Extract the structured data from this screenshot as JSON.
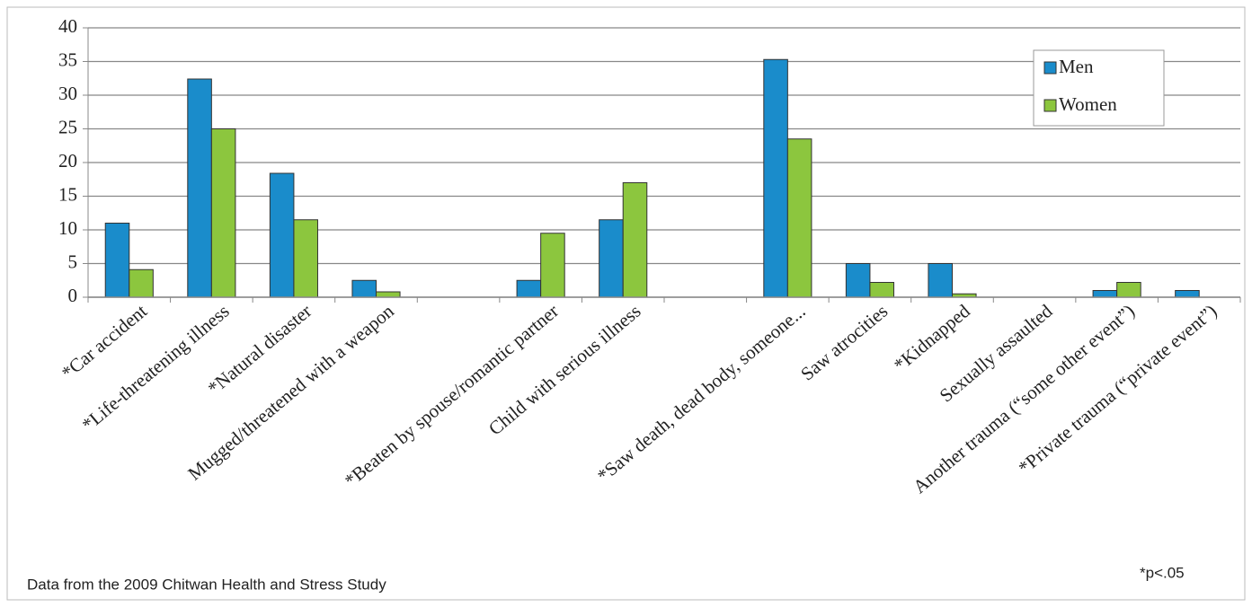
{
  "chart_data": {
    "type": "bar",
    "categories": [
      "*Car accident",
      "*Life-threatening illness",
      "*Natural disaster",
      "Mugged/threatened with a weapon",
      null,
      "*Beaten by spouse/romantic partner",
      "Child with serious illness",
      null,
      "*Saw death, dead body, someone...",
      "Saw atrocities",
      "*Kidnapped",
      "Sexually assaulted",
      "Another trauma (“some other event”)",
      "*Private trauma (“private event”)"
    ],
    "series": [
      {
        "name": "Men",
        "color": "#1a8ccb",
        "values": [
          11,
          32.4,
          18.4,
          2.5,
          null,
          2.5,
          11.5,
          null,
          35.3,
          5,
          5,
          0,
          1,
          1
        ]
      },
      {
        "name": "Women",
        "color": "#8cc63e",
        "values": [
          4.1,
          25,
          11.5,
          0.8,
          null,
          9.5,
          17,
          null,
          23.5,
          2.2,
          0.5,
          0,
          2.2,
          0
        ]
      }
    ],
    "ylim": [
      0,
      40
    ],
    "yticks": [
      0,
      5,
      10,
      15,
      20,
      25,
      30,
      35,
      40
    ],
    "grid": true,
    "legend": "upper right",
    "source": "Data from the 2009 Chitwan Health and Stress Study",
    "note": "*p<.05"
  }
}
